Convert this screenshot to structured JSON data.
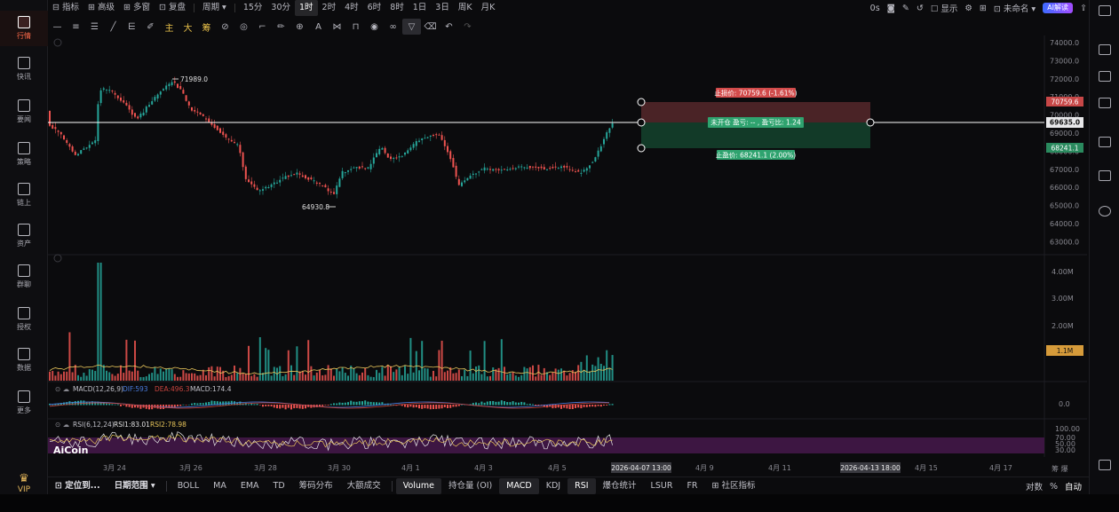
{
  "sidebar": {
    "items": [
      {
        "label": "行情",
        "icon": "bar-chart-icon",
        "active": true
      },
      {
        "label": "快讯",
        "icon": "news-icon"
      },
      {
        "label": "要闻",
        "icon": "article-icon"
      },
      {
        "label": "策略",
        "icon": "robot-icon"
      },
      {
        "label": "链上",
        "icon": "chain-icon"
      },
      {
        "label": "资产",
        "icon": "wallet-icon"
      },
      {
        "label": "群聊",
        "icon": "chat-icon"
      },
      {
        "label": "授权",
        "icon": "key-icon"
      },
      {
        "label": "数据",
        "icon": "data-icon"
      },
      {
        "label": "更多",
        "icon": "grid-icon"
      }
    ],
    "vip": "VIP"
  },
  "topbar": {
    "left": [
      "指标",
      "高级",
      "多窗",
      "复盘"
    ],
    "period": "周期",
    "intervals": [
      "15分",
      "30分",
      "1时",
      "2时",
      "4时",
      "6时",
      "8时",
      "1日",
      "3日",
      "周K",
      "月K"
    ],
    "active_interval": "1时",
    "right": {
      "seconds": "0s",
      "display": "显示",
      "unnamed": "未命名",
      "ai": "AI解读"
    }
  },
  "toolbar2": {
    "yellow": [
      "主",
      "大",
      "筹"
    ]
  },
  "chart": {
    "price_levels": [
      "74000.0",
      "73000.0",
      "72000.0",
      "71000.0",
      "70000.0",
      "69000.0",
      "68000.0",
      "67000.0",
      "66000.0",
      "65000.0",
      "64000.0",
      "63000.0",
      "62000.0",
      "61000.0",
      "60000.0"
    ],
    "high_label": "71989.0",
    "low_label": "64930.8",
    "stop_loss_price": "70759.6",
    "current_price": "69635.0",
    "take_profit_price": "68241.1",
    "stop_loss_text": "止损价: 70759.6 (-1.61%)",
    "position_text": "未开仓 盈亏: -- , 盈亏比: 1.24",
    "take_profit_text": "止盈价: 68241.1 (2.00%)",
    "volume_levels": [
      "4.00M",
      "3.00M",
      "2.00M"
    ],
    "volume_current": "1.1M",
    "macd_label": "MACD(12,26,9)",
    "macd_dif": "DIF:593",
    "macd_dea": "DEA:496.3",
    "macd_value": "MACD:174.4",
    "macd_zero": "0.0",
    "rsi_label": "RSI(6,12,24)",
    "rsi1": "RSI1:83.01",
    "rsi2": "RSI2:78.98",
    "rsi_levels": [
      "100.00",
      "70.00",
      "50.00",
      "30.00"
    ],
    "dates": [
      "3月 24",
      "3月 26",
      "3月 28",
      "3月 30",
      "4月 1",
      "4月 3",
      "4月 5",
      "4月 9",
      "4月 11",
      "4月 15",
      "4月 17"
    ],
    "crosshair_date_1": "2026-04-07 13:00",
    "crosshair_date_2": "2026-04-13 18:00",
    "logo": "AiCoin",
    "corner": "筹 爆"
  },
  "bottombar": {
    "locate": "定位到...",
    "date_range": "日期范围",
    "indicators": [
      "BOLL",
      "MA",
      "EMA",
      "TD",
      "筹码分布",
      "大额成交"
    ],
    "sub_indicators": [
      "Volume",
      "持仓量 (OI)",
      "MACD",
      "KDJ",
      "RSI",
      "爆仓统计",
      "LSUR",
      "FR",
      "社区指标"
    ],
    "active_sub": [
      "Volume",
      "MACD",
      "RSI"
    ],
    "right": {
      "log": "对数",
      "pct": "%",
      "auto": "自动"
    }
  },
  "colors": {
    "up": "#26a69a",
    "down": "#ef5350",
    "stop_fill": "#5a2a2a",
    "profit_fill": "#163a2a",
    "rsi_band": "#4a1a4f"
  }
}
